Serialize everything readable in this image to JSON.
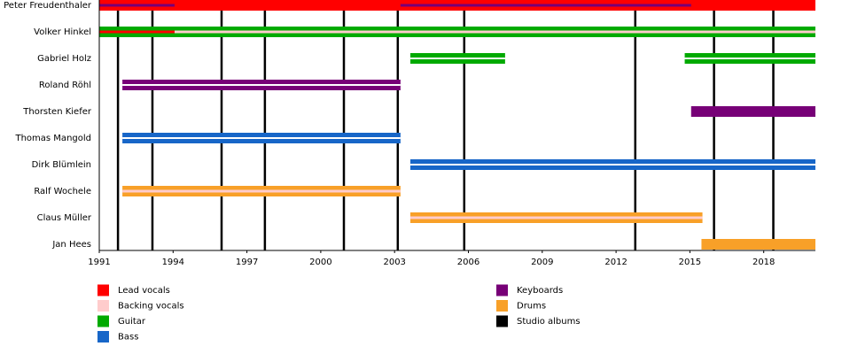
{
  "chart_data": {
    "type": "timeline",
    "xlim": [
      1991,
      2020.1
    ],
    "xticks": [
      1991,
      1994,
      1997,
      2000,
      2003,
      2006,
      2009,
      2012,
      2015,
      2018
    ],
    "legend": [
      {
        "name": "Lead vocals",
        "color": "#ff0000"
      },
      {
        "name": "Backing vocals",
        "color": "#ffcccc"
      },
      {
        "name": "Guitar",
        "color": "#00aa00"
      },
      {
        "name": "Bass",
        "color": "#1766c8"
      },
      {
        "name": "Keyboards",
        "color": "#770077"
      },
      {
        "name": "Drums",
        "color": "#f8a028"
      },
      {
        "name": "Studio albums",
        "color": "#000000"
      }
    ],
    "albums": [
      1991.76,
      1993.16,
      1995.97,
      1997.73,
      2000.94,
      2003.13,
      2005.83,
      2012.78,
      2015.98,
      2018.39
    ],
    "members": [
      {
        "name": "Peter Freudenthaler",
        "periods": [
          {
            "role": "Lead vocals",
            "start": 1991,
            "end": 2020.1,
            "style": "full"
          },
          {
            "role": "Keyboards",
            "start": 1991,
            "end": 1994.06,
            "style": "thin"
          },
          {
            "role": "Keyboards",
            "start": 2003.24,
            "end": 2015.05,
            "style": "thin"
          }
        ]
      },
      {
        "name": "Volker Hinkel",
        "periods": [
          {
            "role": "Guitar",
            "start": 1991,
            "end": 2020.1,
            "style": "full"
          },
          {
            "role": "Backing vocals",
            "start": 1991,
            "end": 2020.1,
            "style": "thin"
          },
          {
            "role": "Lead vocals",
            "start": 1991,
            "end": 1994.06,
            "style": "thin"
          }
        ]
      },
      {
        "name": "Gabriel Holz",
        "periods": [
          {
            "role": "Guitar",
            "start": 2003.64,
            "end": 2007.49,
            "style": "split"
          },
          {
            "role": "Guitar",
            "start": 2014.79,
            "end": 2020.1,
            "style": "split"
          }
        ]
      },
      {
        "name": "Roland Röhl",
        "periods": [
          {
            "role": "Keyboards",
            "start": 1991.94,
            "end": 2003.24,
            "style": "split"
          }
        ]
      },
      {
        "name": "Thorsten Kiefer",
        "periods": [
          {
            "role": "Keyboards",
            "start": 2015.05,
            "end": 2020.1,
            "style": "full"
          }
        ]
      },
      {
        "name": "Thomas Mangold",
        "periods": [
          {
            "role": "Bass",
            "start": 1991.94,
            "end": 2003.24,
            "style": "split"
          }
        ]
      },
      {
        "name": "Dirk Blümlein",
        "periods": [
          {
            "role": "Bass",
            "start": 2003.64,
            "end": 2020.1,
            "style": "split"
          }
        ]
      },
      {
        "name": "Ralf Wochele",
        "periods": [
          {
            "role": "Drums",
            "start": 1991.94,
            "end": 2003.24,
            "style": "full"
          },
          {
            "role": "Backing vocals",
            "start": 1991.94,
            "end": 2003.24,
            "style": "thin"
          }
        ]
      },
      {
        "name": "Claus Müller",
        "periods": [
          {
            "role": "Drums",
            "start": 2003.64,
            "end": 2015.51,
            "style": "full"
          },
          {
            "role": "Backing vocals",
            "start": 2003.64,
            "end": 2015.51,
            "style": "thin"
          }
        ]
      },
      {
        "name": "Jan Hees",
        "periods": [
          {
            "role": "Drums",
            "start": 2015.47,
            "end": 2020.1,
            "style": "full"
          }
        ]
      }
    ]
  }
}
